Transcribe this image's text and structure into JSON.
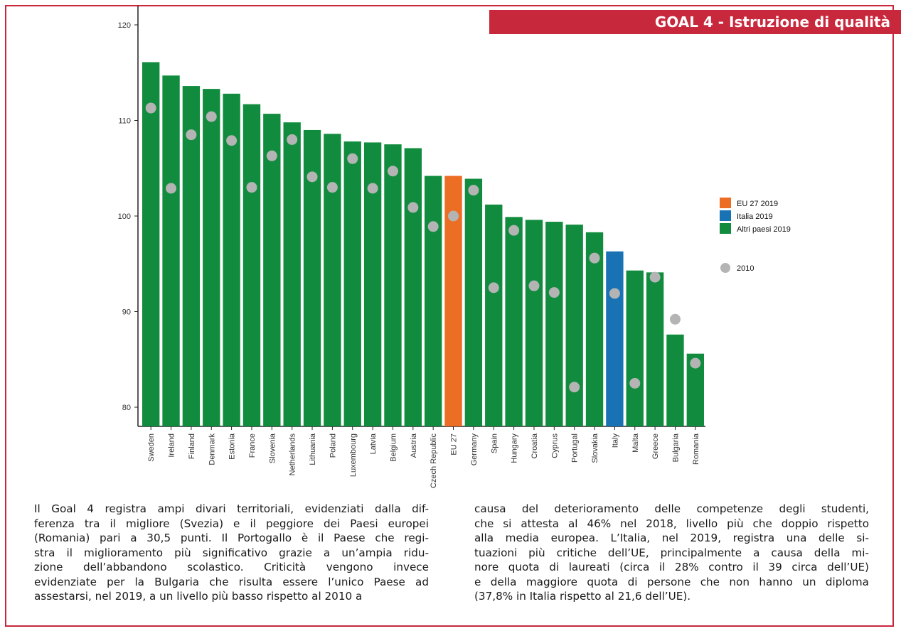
{
  "header": {
    "goal_title": "GOAL 4 - Istruzione di qualità"
  },
  "colors": {
    "frame": "#c8283c",
    "eu": "#ec6d24",
    "italy": "#1872b3",
    "others": "#118c3e",
    "dot_2010": "#b4b4b4"
  },
  "chart_data": {
    "type": "bar",
    "title": "",
    "xlabel": "",
    "ylabel": "",
    "ylim": [
      78,
      121
    ],
    "yticks": [
      80,
      90,
      100,
      110,
      120
    ],
    "categories": [
      "Sweden",
      "Ireland",
      "Finland",
      "Denmark",
      "Estonia",
      "France",
      "Slovenia",
      "Netherlands",
      "Lithuania",
      "Poland",
      "Luxembourg",
      "Latvia",
      "Belgium",
      "Austria",
      "Czech Republic",
      "EU 27",
      "Germany",
      "Spain",
      "Hungary",
      "Croatia",
      "Cyprus",
      "Portugal",
      "Slovakia",
      "Italy",
      "Malta",
      "Greece",
      "Bulgaria",
      "Romania"
    ],
    "series": [
      {
        "name": "2019",
        "type": "bar",
        "values": [
          116.1,
          114.7,
          113.6,
          113.3,
          112.8,
          111.7,
          110.7,
          109.8,
          109.0,
          108.6,
          107.8,
          107.7,
          107.5,
          107.1,
          104.2,
          104.2,
          103.9,
          101.2,
          99.9,
          99.6,
          99.4,
          99.1,
          98.3,
          96.3,
          94.3,
          94.1,
          87.6,
          85.6
        ],
        "groups": [
          "Altri paesi 2019",
          "Altri paesi 2019",
          "Altri paesi 2019",
          "Altri paesi 2019",
          "Altri paesi 2019",
          "Altri paesi 2019",
          "Altri paesi 2019",
          "Altri paesi 2019",
          "Altri paesi 2019",
          "Altri paesi 2019",
          "Altri paesi 2019",
          "Altri paesi 2019",
          "Altri paesi 2019",
          "Altri paesi 2019",
          "Altri paesi 2019",
          "EU 27 2019",
          "Altri paesi 2019",
          "Altri paesi 2019",
          "Altri paesi 2019",
          "Altri paesi 2019",
          "Altri paesi 2019",
          "Altri paesi 2019",
          "Altri paesi 2019",
          "Italia 2019",
          "Altri paesi 2019",
          "Altri paesi 2019",
          "Altri paesi 2019",
          "Altri paesi 2019"
        ]
      },
      {
        "name": "2010",
        "type": "scatter",
        "values": [
          111.3,
          102.9,
          108.5,
          110.4,
          107.9,
          103.0,
          106.3,
          108.0,
          104.1,
          103.0,
          106.0,
          102.9,
          104.7,
          100.9,
          98.9,
          100.0,
          102.7,
          92.5,
          98.5,
          92.7,
          92.0,
          82.1,
          95.6,
          91.9,
          82.5,
          93.6,
          89.2,
          84.6
        ]
      }
    ],
    "legend": {
      "position": "right",
      "items": [
        {
          "label": "EU 27 2019",
          "color": "#ec6d24",
          "shape": "square"
        },
        {
          "label": "Italia 2019",
          "color": "#1872b3",
          "shape": "square"
        },
        {
          "label": "Altri paesi 2019",
          "color": "#118c3e",
          "shape": "square"
        },
        {
          "label": "2010",
          "color": "#b4b4b4",
          "shape": "circle"
        }
      ]
    }
  },
  "text": {
    "left_lines": [
      "Il Goal 4 registra ampi divari territoriali, evidenziati dalla dif-",
      "ferenza tra il migliore (Svezia) e il peggiore dei Paesi europei",
      "(Romania) pari a 30,5 punti. Il Portogallo è il Paese che regi-",
      "stra il miglioramento più significativo grazie a un’ampia ridu-",
      "zione dell’abbandono scolastico. Criticità vengono invece",
      "evidenziate per la Bulgaria che risulta essere l’unico Paese ad",
      "assestarsi, nel 2019, a un livello più basso rispetto al 2010 a"
    ],
    "right_lines": [
      "causa del deterioramento delle competenze degli studenti,",
      "che si attesta al 46% nel 2018, livello più che doppio rispetto",
      "alla media europea. L’Italia, nel 2019, registra una delle si-",
      "tuazioni più critiche dell’UE, principalmente a causa della mi-",
      "nore quota di laureati (circa il 28% contro il 39 circa dell’UE)",
      "e della maggiore quota di persone che non hanno un diploma",
      "(37,8% in Italia rispetto al 21,6 dell’UE)."
    ]
  }
}
